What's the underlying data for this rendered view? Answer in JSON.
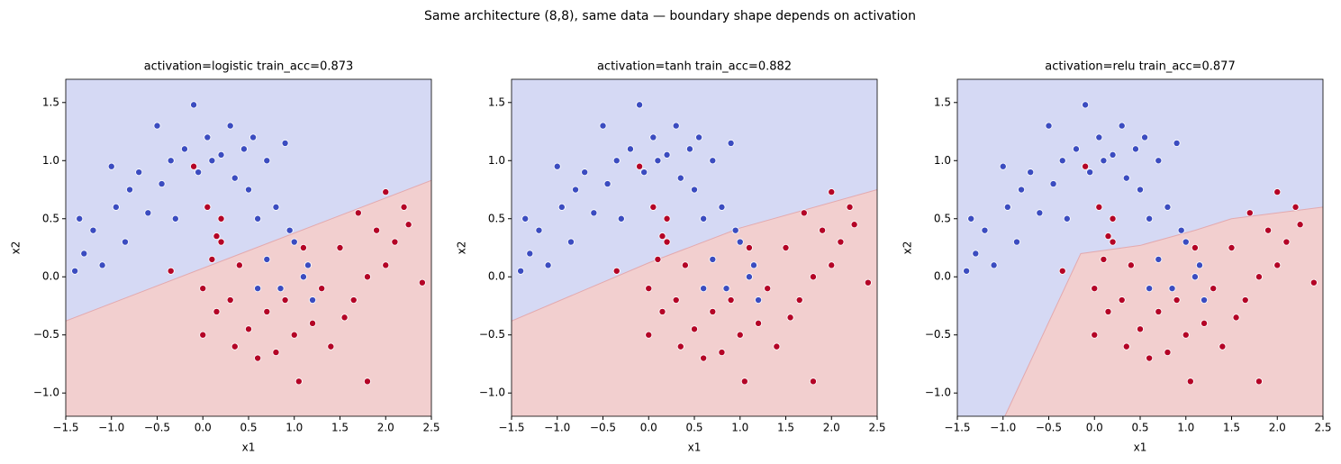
{
  "title": "Same architecture (8,8), same data — boundary shape depends on activation",
  "chart_data": [
    {
      "type": "scatter",
      "title": "activation=logistic  train_acc=0.873",
      "x_label": "x1",
      "y_label": "x2",
      "xlim": [
        -1.5,
        2.5
      ],
      "ylim": [
        -1.2,
        1.7
      ],
      "xticks": [
        {
          "value": -1.5,
          "label": "−1.5"
        },
        {
          "value": -1,
          "label": "−1.0"
        },
        {
          "value": -0.5,
          "label": "−0.5"
        },
        {
          "value": 0,
          "label": "0.0"
        },
        0.5,
        {
          "value": 1,
          "label": "1.0"
        },
        1.5,
        {
          "value": 2,
          "label": "2.0"
        },
        2.5
      ],
      "yticks": [
        {
          "value": -1,
          "label": "−1.0"
        },
        {
          "value": -0.5,
          "label": "−0.5"
        },
        {
          "value": 0,
          "label": "0.0"
        },
        0.5,
        {
          "value": 1,
          "label": "1.0"
        },
        1.5
      ],
      "boundary": {
        "x": [
          -1.5,
          2.5
        ],
        "y": [
          -0.38,
          0.83
        ]
      },
      "region_colors": [
        "#d5d9f4",
        "#f2cfcf"
      ],
      "series": [
        {
          "color": "#3b4cc0",
          "x": [
            -1.35,
            -1.3,
            -1.2,
            -1.1,
            -1.0,
            -0.95,
            -0.85,
            -0.8,
            -0.7,
            -0.6,
            -0.5,
            -0.45,
            -0.35,
            -0.3,
            -0.2,
            -0.1,
            -0.05,
            0.05,
            0.1,
            0.2,
            0.3,
            0.35,
            0.45,
            0.5,
            0.55,
            0.6,
            0.7,
            0.8,
            0.9,
            0.95,
            0.7,
            0.85,
            1.0,
            1.1,
            1.2,
            1.15,
            0.6,
            -1.4
          ],
          "values": [
            0.5,
            0.2,
            0.4,
            0.1,
            0.95,
            0.6,
            0.3,
            0.75,
            0.9,
            0.55,
            1.3,
            0.8,
            1.0,
            0.5,
            1.1,
            1.48,
            0.9,
            1.2,
            1.0,
            1.05,
            1.3,
            0.85,
            1.1,
            0.75,
            1.2,
            0.5,
            1.0,
            0.6,
            1.15,
            0.4,
            0.15,
            -0.1,
            0.3,
            0.0,
            -0.2,
            0.1,
            -0.1,
            0.05
          ]
        },
        {
          "color": "#b40426",
          "x": [
            -0.35,
            0.0,
            0.0,
            0.1,
            0.15,
            0.2,
            0.3,
            0.35,
            0.4,
            0.5,
            0.6,
            0.7,
            0.8,
            0.9,
            1.0,
            1.05,
            1.2,
            1.3,
            1.4,
            1.5,
            1.55,
            1.65,
            1.7,
            1.8,
            1.8,
            1.9,
            2.0,
            2.0,
            2.1,
            2.2,
            2.25,
            2.4,
            1.1,
            0.2,
            -0.1,
            0.05,
            0.15
          ],
          "values": [
            0.05,
            -0.1,
            -0.5,
            0.15,
            -0.3,
            0.5,
            -0.2,
            -0.6,
            0.1,
            -0.45,
            -0.7,
            -0.3,
            -0.65,
            -0.2,
            -0.5,
            -0.9,
            -0.4,
            -0.1,
            -0.6,
            0.25,
            -0.35,
            -0.2,
            0.55,
            0.0,
            -0.9,
            0.4,
            0.1,
            0.73,
            0.3,
            0.6,
            0.45,
            -0.05,
            0.25,
            0.3,
            0.95,
            0.6,
            0.35
          ]
        }
      ]
    },
    {
      "type": "scatter",
      "title": "activation=tanh  train_acc=0.882",
      "x_label": "x1",
      "y_label": "x2",
      "xlim": [
        -1.5,
        2.5
      ],
      "ylim": [
        -1.2,
        1.7
      ],
      "xticks": [
        {
          "value": -1.5,
          "label": "−1.5"
        },
        {
          "value": -1,
          "label": "−1.0"
        },
        {
          "value": -0.5,
          "label": "−0.5"
        },
        {
          "value": 0,
          "label": "0.0"
        },
        0.5,
        {
          "value": 1,
          "label": "1.0"
        },
        1.5,
        {
          "value": 2,
          "label": "2.0"
        },
        2.5
      ],
      "yticks": [
        {
          "value": -1,
          "label": "−1.0"
        },
        {
          "value": -0.5,
          "label": "−0.5"
        },
        {
          "value": 0,
          "label": "0.0"
        },
        0.5,
        {
          "value": 1,
          "label": "1.0"
        },
        1.5
      ],
      "boundary": {
        "x": [
          -1.5,
          0,
          1,
          2.5
        ],
        "y": [
          -0.38,
          0.12,
          0.42,
          0.75
        ]
      },
      "region_colors": [
        "#d5d9f4",
        "#f2cfcf"
      ],
      "series": [
        {
          "color": "#3b4cc0",
          "x": [
            -1.35,
            -1.3,
            -1.2,
            -1.1,
            -1.0,
            -0.95,
            -0.85,
            -0.8,
            -0.7,
            -0.6,
            -0.5,
            -0.45,
            -0.35,
            -0.3,
            -0.2,
            -0.1,
            -0.05,
            0.05,
            0.1,
            0.2,
            0.3,
            0.35,
            0.45,
            0.5,
            0.55,
            0.6,
            0.7,
            0.8,
            0.9,
            0.95,
            0.7,
            0.85,
            1.0,
            1.1,
            1.2,
            1.15,
            0.6,
            -1.4
          ],
          "values": [
            0.5,
            0.2,
            0.4,
            0.1,
            0.95,
            0.6,
            0.3,
            0.75,
            0.9,
            0.55,
            1.3,
            0.8,
            1.0,
            0.5,
            1.1,
            1.48,
            0.9,
            1.2,
            1.0,
            1.05,
            1.3,
            0.85,
            1.1,
            0.75,
            1.2,
            0.5,
            1.0,
            0.6,
            1.15,
            0.4,
            0.15,
            -0.1,
            0.3,
            0.0,
            -0.2,
            0.1,
            -0.1,
            0.05
          ]
        },
        {
          "color": "#b40426",
          "x": [
            -0.35,
            0.0,
            0.0,
            0.1,
            0.15,
            0.2,
            0.3,
            0.35,
            0.4,
            0.5,
            0.6,
            0.7,
            0.8,
            0.9,
            1.0,
            1.05,
            1.2,
            1.3,
            1.4,
            1.5,
            1.55,
            1.65,
            1.7,
            1.8,
            1.8,
            1.9,
            2.0,
            2.0,
            2.1,
            2.2,
            2.25,
            2.4,
            1.1,
            0.2,
            -0.1,
            0.05,
            0.15
          ],
          "values": [
            0.05,
            -0.1,
            -0.5,
            0.15,
            -0.3,
            0.5,
            -0.2,
            -0.6,
            0.1,
            -0.45,
            -0.7,
            -0.3,
            -0.65,
            -0.2,
            -0.5,
            -0.9,
            -0.4,
            -0.1,
            -0.6,
            0.25,
            -0.35,
            -0.2,
            0.55,
            0.0,
            -0.9,
            0.4,
            0.1,
            0.73,
            0.3,
            0.6,
            0.45,
            -0.05,
            0.25,
            0.3,
            0.95,
            0.6,
            0.35
          ]
        }
      ]
    },
    {
      "type": "scatter",
      "title": "activation=relu  train_acc=0.877",
      "x_label": "x1",
      "y_label": "x2",
      "xlim": [
        -1.5,
        2.5
      ],
      "ylim": [
        -1.2,
        1.7
      ],
      "xticks": [
        {
          "value": -1.5,
          "label": "−1.5"
        },
        {
          "value": -1,
          "label": "−1.0"
        },
        {
          "value": -0.5,
          "label": "−0.5"
        },
        {
          "value": 0,
          "label": "0.0"
        },
        0.5,
        {
          "value": 1,
          "label": "1.0"
        },
        1.5,
        {
          "value": 2,
          "label": "2.0"
        },
        2.5
      ],
      "yticks": [
        {
          "value": -1,
          "label": "−1.0"
        },
        {
          "value": -0.5,
          "label": "−0.5"
        },
        {
          "value": 0,
          "label": "0.0"
        },
        0.5,
        {
          "value": 1,
          "label": "1.0"
        },
        1.5
      ],
      "boundary": {
        "x": [
          -0.98,
          -0.15,
          0.5,
          1.1,
          1.5,
          2.5
        ],
        "y": [
          -1.2,
          0.2,
          0.27,
          0.4,
          0.5,
          0.6
        ]
      },
      "region_colors": [
        "#d5d9f4",
        "#f2cfcf"
      ],
      "series": [
        {
          "color": "#3b4cc0",
          "x": [
            -1.35,
            -1.3,
            -1.2,
            -1.1,
            -1.0,
            -0.95,
            -0.85,
            -0.8,
            -0.7,
            -0.6,
            -0.5,
            -0.45,
            -0.35,
            -0.3,
            -0.2,
            -0.1,
            -0.05,
            0.05,
            0.1,
            0.2,
            0.3,
            0.35,
            0.45,
            0.5,
            0.55,
            0.6,
            0.7,
            0.8,
            0.9,
            0.95,
            0.7,
            0.85,
            1.0,
            1.1,
            1.2,
            1.15,
            0.6,
            -1.4
          ],
          "values": [
            0.5,
            0.2,
            0.4,
            0.1,
            0.95,
            0.6,
            0.3,
            0.75,
            0.9,
            0.55,
            1.3,
            0.8,
            1.0,
            0.5,
            1.1,
            1.48,
            0.9,
            1.2,
            1.0,
            1.05,
            1.3,
            0.85,
            1.1,
            0.75,
            1.2,
            0.5,
            1.0,
            0.6,
            1.15,
            0.4,
            0.15,
            -0.1,
            0.3,
            0.0,
            -0.2,
            0.1,
            -0.1,
            0.05
          ]
        },
        {
          "color": "#b40426",
          "x": [
            -0.35,
            0.0,
            0.0,
            0.1,
            0.15,
            0.2,
            0.3,
            0.35,
            0.4,
            0.5,
            0.6,
            0.7,
            0.8,
            0.9,
            1.0,
            1.05,
            1.2,
            1.3,
            1.4,
            1.5,
            1.55,
            1.65,
            1.7,
            1.8,
            1.8,
            1.9,
            2.0,
            2.0,
            2.1,
            2.2,
            2.25,
            2.4,
            1.1,
            0.2,
            -0.1,
            0.05,
            0.15
          ],
          "values": [
            0.05,
            -0.1,
            -0.5,
            0.15,
            -0.3,
            0.5,
            -0.2,
            -0.6,
            0.1,
            -0.45,
            -0.7,
            -0.3,
            -0.65,
            -0.2,
            -0.5,
            -0.9,
            -0.4,
            -0.1,
            -0.6,
            0.25,
            -0.35,
            -0.2,
            0.55,
            0.0,
            -0.9,
            0.4,
            0.1,
            0.73,
            0.3,
            0.6,
            0.45,
            -0.05,
            0.25,
            0.3,
            0.95,
            0.6,
            0.35
          ]
        }
      ]
    }
  ]
}
